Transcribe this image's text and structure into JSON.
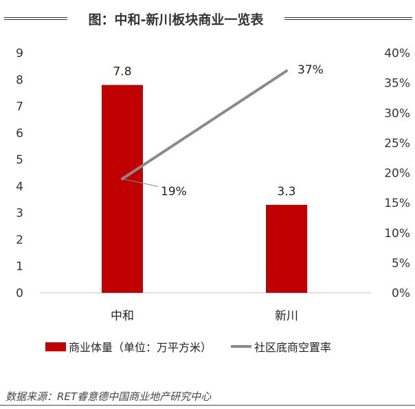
{
  "chart_data": {
    "type": "bar+line",
    "title": "图：中和-新川板块商业一览表",
    "categories": [
      "中和",
      "新川"
    ],
    "series": [
      {
        "name": "商业体量（单位：万平方米）",
        "type": "bar",
        "axis": "left",
        "values": [
          7.8,
          3.3
        ],
        "labels": [
          "7.8",
          "3.3"
        ],
        "color": "#c00000"
      },
      {
        "name": "社区底商空置率",
        "type": "line",
        "axis": "right",
        "values": [
          19,
          37
        ],
        "labels": [
          "19%",
          "37%"
        ],
        "color": "#8a8a8a"
      }
    ],
    "y_left": {
      "min": 0,
      "max": 9,
      "ticks": [
        "0",
        "1",
        "2",
        "3",
        "4",
        "5",
        "6",
        "7",
        "8",
        "9"
      ]
    },
    "y_right": {
      "min": 0,
      "max": 40,
      "ticks": [
        "0%",
        "5%",
        "10%",
        "15%",
        "20%",
        "25%",
        "30%",
        "35%",
        "40%"
      ]
    },
    "legend_position": "bottom",
    "grid": false
  },
  "source": "数据来源：RET睿意德中国商业地产研究中心"
}
